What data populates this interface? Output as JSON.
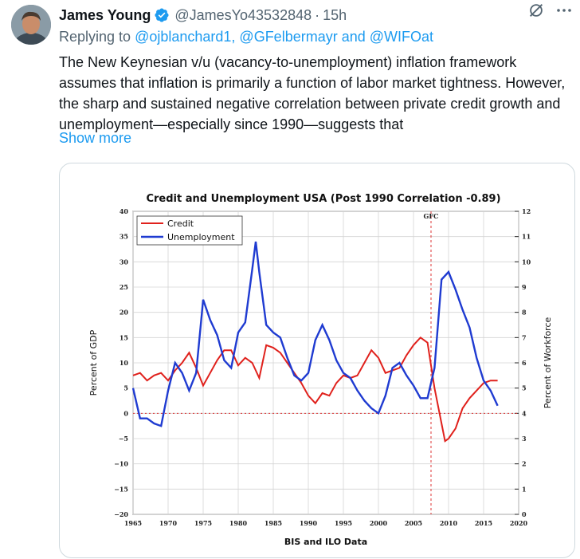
{
  "tweet": {
    "author_name": "James Young",
    "handle": "@JamesYo43532848",
    "separator": "·",
    "time": "15h",
    "reply_prefix": "Replying to ",
    "reply_mentions": "@ojblanchard1, @GFelbermayr and @WIFOat",
    "text": "The New Keynesian v/u (vacancy-to-unemployment) inflation framework assumes that inflation is primarily a function of labor market tightness. However, the sharp and sustained negative correlation between private credit growth and unemployment—especially since 1990—suggests that",
    "show_more": "Show more",
    "icons": {
      "verified": "verified-badge-icon",
      "grok": "grok-icon",
      "more": "more-icon"
    },
    "colors": {
      "link": "#1d9bf0",
      "secondary": "#536471",
      "text": "#0f1419"
    }
  },
  "chart_data": {
    "type": "line",
    "title": "Credit and Unemployment USA (Post 1990 Correlation -0.89)",
    "xlabel": "BIS and ILO Data",
    "ylabel_left": "Percent of GDP",
    "ylabel_right": "Percent of Workforce",
    "xlim": [
      1965,
      2020
    ],
    "x_ticks": [
      "1965",
      "1970",
      "1975",
      "1980",
      "1985",
      "1990",
      "1995",
      "2000",
      "2005",
      "2010",
      "2015",
      "2020"
    ],
    "ylim_left": [
      -20,
      40
    ],
    "y_ticks_left": [
      "40",
      "35",
      "30",
      "25",
      "20",
      "15",
      "10",
      "5",
      "0",
      "−5",
      "−10",
      "−15",
      "−20"
    ],
    "ylim_right": [
      0,
      12
    ],
    "y_ticks_right": [
      "12",
      "11",
      "10",
      "9",
      "8",
      "7",
      "6",
      "5",
      "4",
      "3",
      "2",
      "1",
      "0"
    ],
    "annotation": {
      "label": "GFC",
      "x": 2007.5
    },
    "reference_line_y_left": 0,
    "grid": true,
    "legend": "top-left",
    "series": [
      {
        "name": "Credit",
        "axis": "left",
        "color": "#e0211c",
        "x": [
          1965,
          1966,
          1967,
          1968,
          1969,
          1970,
          1971,
          1972,
          1973,
          1974,
          1975,
          1976,
          1977,
          1978,
          1979,
          1980,
          1981,
          1982,
          1983,
          1984,
          1985,
          1986,
          1987,
          1988,
          1989,
          1990,
          1991,
          1992,
          1993,
          1994,
          1995,
          1996,
          1997,
          1998,
          1999,
          2000,
          2001,
          2002,
          2003,
          2004,
          2005,
          2006,
          2007,
          2008,
          2009,
          2009.5,
          2010,
          2011,
          2012,
          2013,
          2014,
          2015,
          2016,
          2017
        ],
        "values": [
          7.5,
          8,
          6.5,
          7.5,
          8,
          6.5,
          8.5,
          10,
          12,
          9,
          5.5,
          8,
          10.5,
          12.5,
          12.5,
          9.5,
          11,
          10,
          7,
          13.5,
          13,
          12,
          10,
          8,
          6,
          3.5,
          2,
          4,
          3.5,
          6,
          7.5,
          7,
          7.5,
          10,
          12.5,
          11,
          8,
          8.5,
          9,
          11.5,
          13.5,
          15,
          14,
          5,
          -2,
          -5.5,
          -5,
          -3,
          1,
          3,
          4.5,
          6,
          6.5,
          6.5
        ]
      },
      {
        "name": "Unemployment",
        "axis": "right",
        "color": "#1f3bd1",
        "x": [
          1965,
          1966,
          1967,
          1968,
          1969,
          1970,
          1971,
          1972,
          1973,
          1974,
          1975,
          1976,
          1977,
          1978,
          1979,
          1980,
          1981,
          1982,
          1982.5,
          1983,
          1984,
          1985,
          1986,
          1987,
          1988,
          1989,
          1990,
          1991,
          1992,
          1993,
          1994,
          1995,
          1996,
          1997,
          1998,
          1999,
          2000,
          2001,
          2002,
          2003,
          2004,
          2005,
          2006,
          2007,
          2008,
          2009,
          2010,
          2011,
          2012,
          2013,
          2014,
          2015,
          2016,
          2017
        ],
        "values": [
          5,
          3.8,
          3.8,
          3.6,
          3.5,
          4.9,
          6,
          5.6,
          4.9,
          5.6,
          8.5,
          7.7,
          7.1,
          6.1,
          5.8,
          7.2,
          7.6,
          9.7,
          10.8,
          9.6,
          7.5,
          7.2,
          7,
          6.2,
          5.5,
          5.3,
          5.6,
          6.9,
          7.5,
          6.9,
          6.1,
          5.6,
          5.4,
          4.9,
          4.5,
          4.2,
          4,
          4.7,
          5.8,
          6,
          5.5,
          5.1,
          4.6,
          4.6,
          5.8,
          9.3,
          9.6,
          8.9,
          8.1,
          7.4,
          6.2,
          5.3,
          4.9,
          4.3
        ]
      }
    ]
  }
}
